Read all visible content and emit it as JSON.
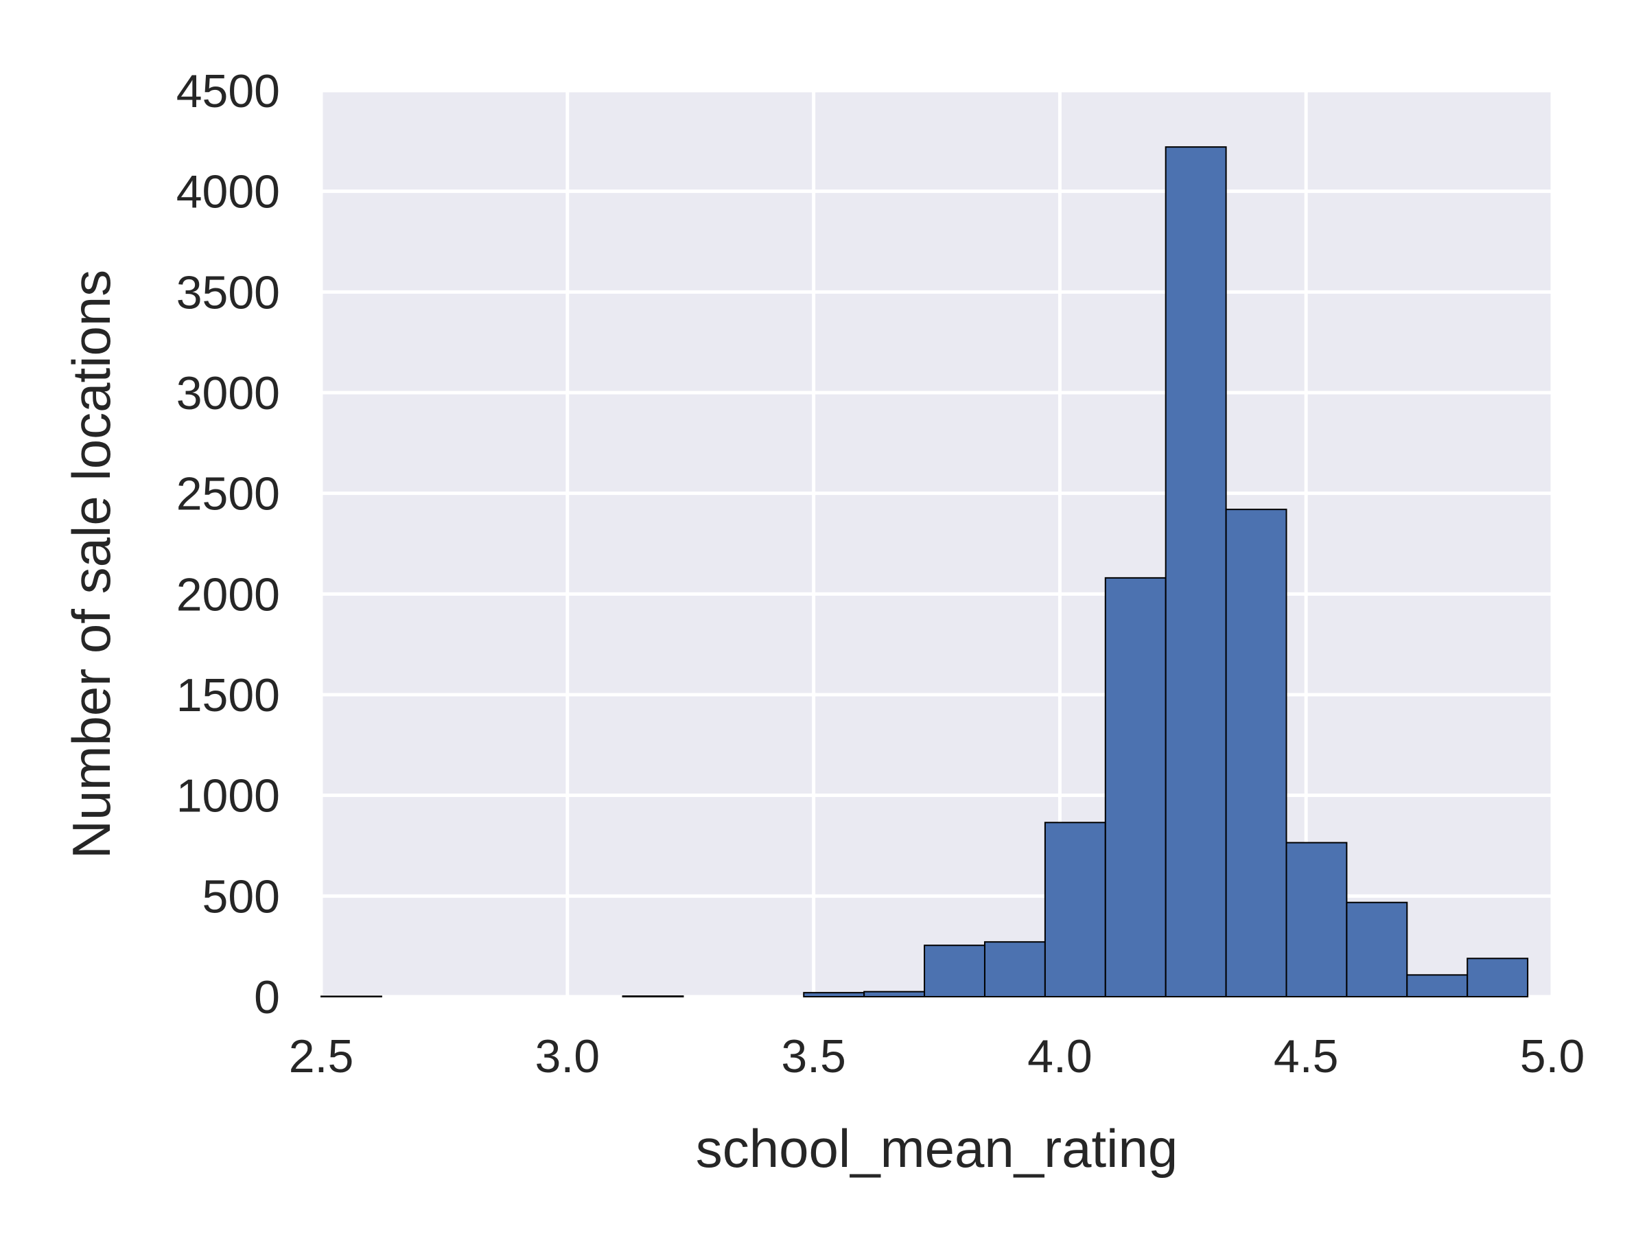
{
  "chart_data": {
    "type": "bar",
    "subtype": "histogram",
    "title": "",
    "xlabel": "school_mean_rating",
    "ylabel": "Number of sale locations",
    "xlim": [
      2.5,
      5.0
    ],
    "ylim": [
      0,
      4500
    ],
    "xticks": [
      2.5,
      3.0,
      3.5,
      4.0,
      4.5,
      5.0
    ],
    "xtick_labels": [
      "2.5",
      "3.0",
      "3.5",
      "4.0",
      "4.5",
      "5.0"
    ],
    "yticks": [
      0,
      500,
      1000,
      1500,
      2000,
      2500,
      3000,
      3500,
      4000,
      4500
    ],
    "ytick_labels": [
      "0",
      "500",
      "1000",
      "1500",
      "2000",
      "2500",
      "3000",
      "3500",
      "4000",
      "4500"
    ],
    "bin_edges": [
      2.5,
      2.6225,
      2.745,
      2.8675,
      2.99,
      3.1125,
      3.235,
      3.3575,
      3.48,
      3.6025,
      3.725,
      3.8475,
      3.97,
      4.0925,
      4.215,
      4.3375,
      4.46,
      4.5825,
      4.705,
      4.8275,
      4.95
    ],
    "values": [
      2,
      0,
      0,
      0,
      0,
      3,
      0,
      0,
      20,
      25,
      255,
      272,
      865,
      2080,
      4220,
      2420,
      765,
      468,
      108,
      190
    ],
    "grid": true,
    "legend": "none",
    "colors": {
      "bar_fill": "#4c72b0",
      "bar_edge": "#000000",
      "plot_background": "#eaeaf2",
      "grid": "#ffffff",
      "text": "#262626"
    }
  }
}
